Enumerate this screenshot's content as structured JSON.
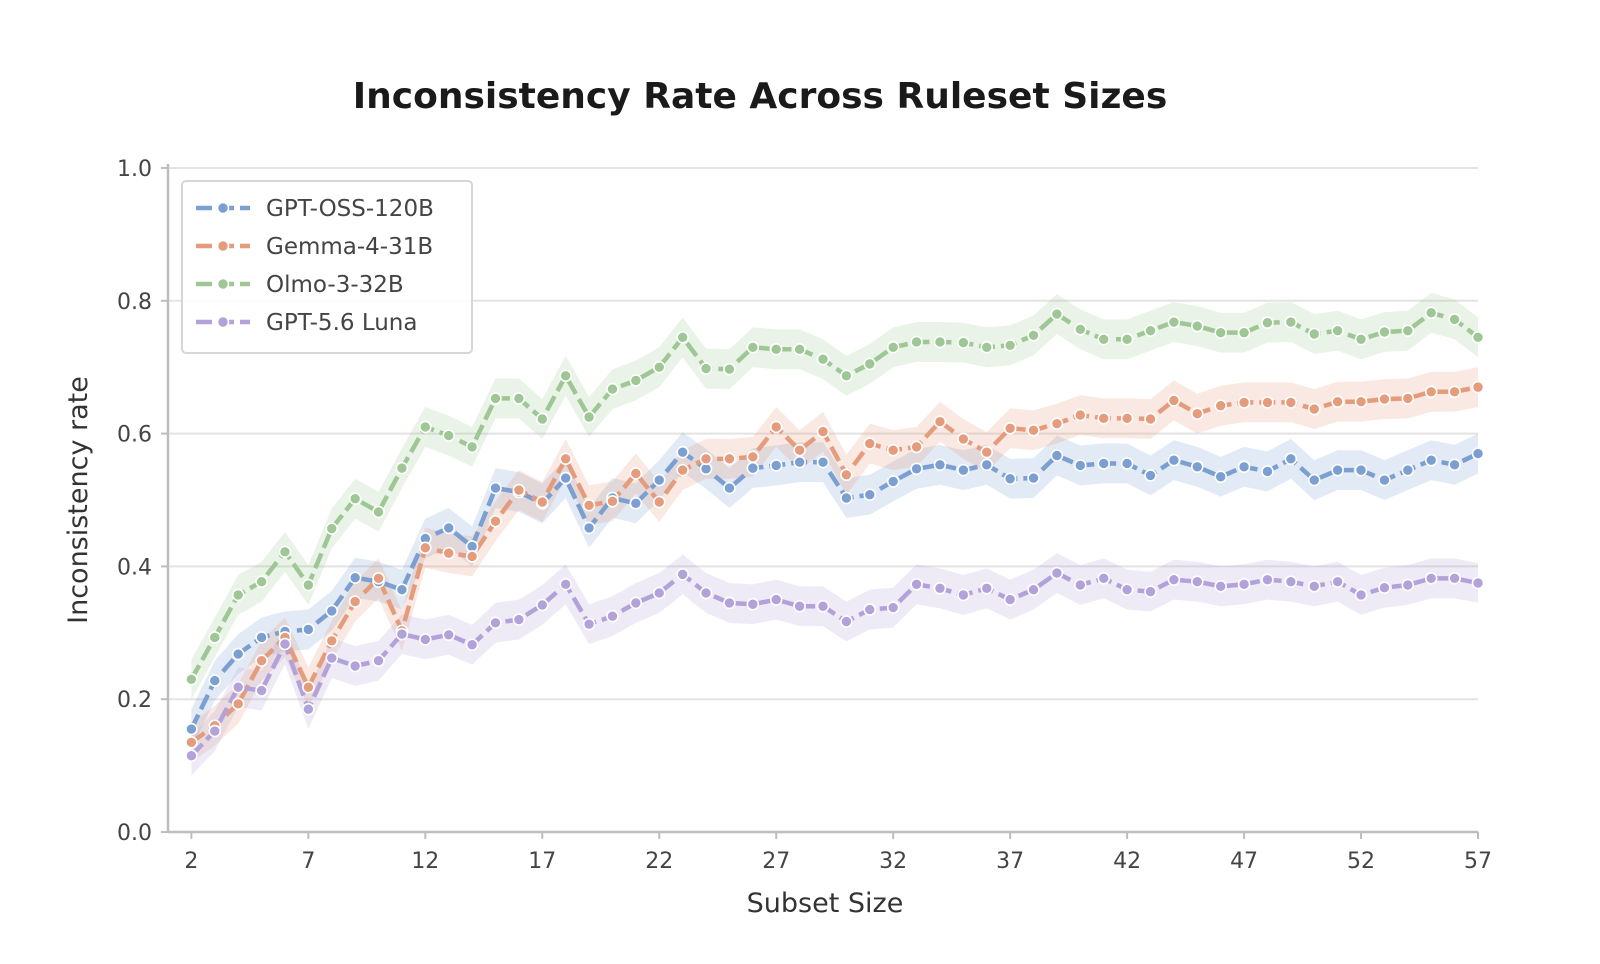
{
  "chart_data": {
    "type": "line",
    "title": "Inconsistency Rate Across Ruleset Sizes",
    "xlabel": "Subset Size",
    "ylabel": "Inconsistency rate",
    "xlim": [
      1,
      57
    ],
    "ylim": [
      0.0,
      1.0
    ],
    "x_ticks": [
      2,
      7,
      12,
      17,
      22,
      27,
      32,
      37,
      42,
      47,
      52,
      57
    ],
    "x_tick_labels": [
      "2",
      "7",
      "12",
      "17",
      "22",
      "27",
      "32",
      "37",
      "42",
      "47",
      "52",
      "57"
    ],
    "y_ticks": [
      0.0,
      0.2,
      0.4,
      0.6,
      0.8,
      1.0
    ],
    "y_tick_labels": [
      "0.0",
      "0.2",
      "0.4",
      "0.6",
      "0.8",
      "1.0"
    ],
    "grid": "horizontal",
    "legend_position": "top-left",
    "band_half_width": 0.03,
    "x": [
      2,
      3,
      4,
      5,
      6,
      7,
      8,
      9,
      10,
      11,
      12,
      13,
      14,
      15,
      16,
      17,
      18,
      19,
      20,
      21,
      22,
      23,
      24,
      25,
      26,
      27,
      28,
      29,
      30,
      31,
      32,
      33,
      34,
      35,
      36,
      37,
      38,
      39,
      40,
      41,
      42,
      43,
      44,
      45,
      46,
      47,
      48,
      49,
      50,
      51,
      52,
      53,
      54,
      55,
      56,
      57
    ],
    "series": [
      {
        "name": "GPT-OSS-120B",
        "color": "#7b9fd0",
        "values": [
          0.155,
          0.228,
          0.268,
          0.293,
          0.302,
          0.305,
          0.333,
          0.383,
          0.377,
          0.365,
          0.442,
          0.458,
          0.43,
          0.518,
          0.512,
          0.495,
          0.533,
          0.458,
          0.503,
          0.495,
          0.53,
          0.572,
          0.547,
          0.518,
          0.548,
          0.552,
          0.557,
          0.557,
          0.503,
          0.508,
          0.528,
          0.547,
          0.553,
          0.545,
          0.553,
          0.532,
          0.533,
          0.567,
          0.552,
          0.555,
          0.555,
          0.537,
          0.56,
          0.55,
          0.535,
          0.55,
          0.543,
          0.562,
          0.53,
          0.545,
          0.545,
          0.53,
          0.545,
          0.56,
          0.553,
          0.57
        ]
      },
      {
        "name": "Gemma-4-31B",
        "color": "#e59c7d",
        "values": [
          0.135,
          0.16,
          0.193,
          0.258,
          0.293,
          0.218,
          0.288,
          0.347,
          0.382,
          0.303,
          0.428,
          0.42,
          0.415,
          0.468,
          0.515,
          0.497,
          0.562,
          0.492,
          0.498,
          0.54,
          0.497,
          0.545,
          0.562,
          0.562,
          0.565,
          0.61,
          0.575,
          0.603,
          0.538,
          0.585,
          0.575,
          0.58,
          0.618,
          0.592,
          0.572,
          0.608,
          0.605,
          0.615,
          0.628,
          0.623,
          0.623,
          0.622,
          0.65,
          0.63,
          0.642,
          0.647,
          0.647,
          0.647,
          0.637,
          0.648,
          0.648,
          0.652,
          0.653,
          0.663,
          0.663,
          0.67
        ]
      },
      {
        "name": "Olmo-3-32B",
        "color": "#9ec795",
        "values": [
          0.23,
          0.293,
          0.357,
          0.377,
          0.422,
          0.372,
          0.457,
          0.502,
          0.482,
          0.548,
          0.61,
          0.597,
          0.58,
          0.653,
          0.653,
          0.622,
          0.687,
          0.625,
          0.667,
          0.68,
          0.7,
          0.745,
          0.698,
          0.697,
          0.73,
          0.727,
          0.727,
          0.712,
          0.687,
          0.705,
          0.73,
          0.738,
          0.738,
          0.737,
          0.73,
          0.733,
          0.748,
          0.78,
          0.757,
          0.742,
          0.742,
          0.755,
          0.768,
          0.762,
          0.752,
          0.752,
          0.767,
          0.768,
          0.75,
          0.755,
          0.742,
          0.753,
          0.755,
          0.782,
          0.772,
          0.745
        ]
      },
      {
        "name": "GPT-5.6 Luna",
        "color": "#b3a2d9",
        "values": [
          0.115,
          0.152,
          0.218,
          0.213,
          0.283,
          0.185,
          0.262,
          0.25,
          0.258,
          0.298,
          0.29,
          0.297,
          0.282,
          0.315,
          0.32,
          0.342,
          0.373,
          0.313,
          0.325,
          0.345,
          0.36,
          0.388,
          0.36,
          0.345,
          0.343,
          0.35,
          0.34,
          0.34,
          0.317,
          0.335,
          0.338,
          0.373,
          0.367,
          0.357,
          0.367,
          0.35,
          0.365,
          0.39,
          0.372,
          0.382,
          0.365,
          0.362,
          0.38,
          0.377,
          0.37,
          0.373,
          0.38,
          0.377,
          0.37,
          0.377,
          0.357,
          0.368,
          0.372,
          0.382,
          0.382,
          0.375
        ]
      }
    ]
  }
}
